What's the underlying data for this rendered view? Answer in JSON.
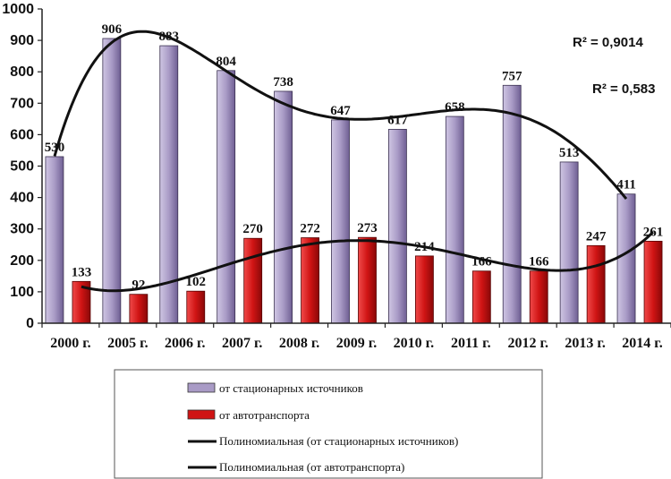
{
  "chart_data": {
    "type": "bar",
    "categories": [
      "2000 г.",
      "2005 г.",
      "2006 г.",
      "2007 г.",
      "2008 г.",
      "2009 г.",
      "2010 г.",
      "2011 г.",
      "2012 г.",
      "2013 г.",
      "2014 г."
    ],
    "series": [
      {
        "name": "от стационарных источников",
        "color": "#a99bc6",
        "values": [
          530,
          906,
          883,
          804,
          738,
          647,
          617,
          658,
          757,
          513,
          411
        ]
      },
      {
        "name": "от автотранспорта",
        "color": "#d01414",
        "values": [
          133,
          92,
          102,
          270,
          272,
          273,
          214,
          166,
          166,
          247,
          261
        ]
      }
    ],
    "trendlines": [
      {
        "name": "Полиномиальная (от стационарных источников)",
        "type": "polynomial",
        "series": 0,
        "r2_label": "R² = 0,9014"
      },
      {
        "name": "Полиномиальная (от автотранспорта)",
        "type": "polynomial",
        "series": 1,
        "r2_label": "R² = 0,583"
      }
    ],
    "yticks": [
      "0",
      "100",
      "200",
      "300",
      "400",
      "500",
      "600",
      "700",
      "800",
      "900",
      "1000"
    ],
    "ylim": [
      0,
      1000
    ],
    "grid": false,
    "legend_position": "bottom"
  }
}
